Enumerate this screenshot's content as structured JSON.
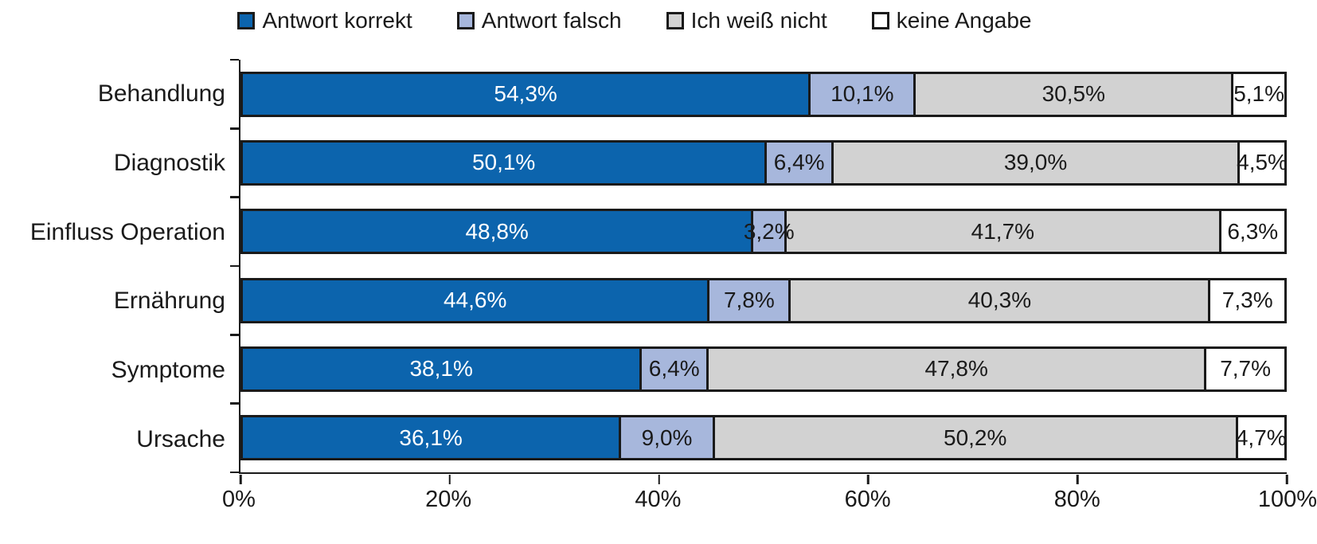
{
  "figure": {
    "background": "#ffffff",
    "text_color": "#1a1a1a",
    "axis_color": "#1a1a1a"
  },
  "chart_data": {
    "type": "bar",
    "stacked": true,
    "orientation": "horizontal",
    "title": "",
    "xlabel": "",
    "ylabel": "",
    "xlim": [
      0,
      100
    ],
    "grid": false,
    "legend_position": "top",
    "categories": [
      "Behandlung",
      "Diagnostik",
      "Einfluss Operation",
      "Ernährung",
      "Symptome",
      "Ursache"
    ],
    "series": [
      {
        "name": "Antwort korrekt",
        "color": "#0c64ad",
        "text_color": "#ffffff",
        "values": [
          54.3,
          50.1,
          48.8,
          44.6,
          38.1,
          36.1
        ]
      },
      {
        "name": "Antwort falsch",
        "color": "#a7b7dc",
        "text_color": "#1a1a1a",
        "values": [
          10.1,
          6.4,
          3.2,
          7.8,
          6.4,
          9.0
        ]
      },
      {
        "name": "Ich weiß nicht",
        "color": "#d2d2d2",
        "text_color": "#1a1a1a",
        "values": [
          30.5,
          39.0,
          41.7,
          40.3,
          47.8,
          50.2
        ]
      },
      {
        "name": "keine Angabe",
        "color": "#ffffff",
        "text_color": "#1a1a1a",
        "values": [
          5.1,
          4.5,
          6.3,
          7.3,
          7.7,
          4.7
        ]
      }
    ],
    "value_label_format": "one decimal, comma separator, percent sign, shown inside segments",
    "x_ticks": [
      {
        "value": 0,
        "label": "0%"
      },
      {
        "value": 20,
        "label": "20%"
      },
      {
        "value": 40,
        "label": "40%"
      },
      {
        "value": 60,
        "label": "60%"
      },
      {
        "value": 80,
        "label": "80%"
      },
      {
        "value": 100,
        "label": "100%"
      }
    ]
  }
}
